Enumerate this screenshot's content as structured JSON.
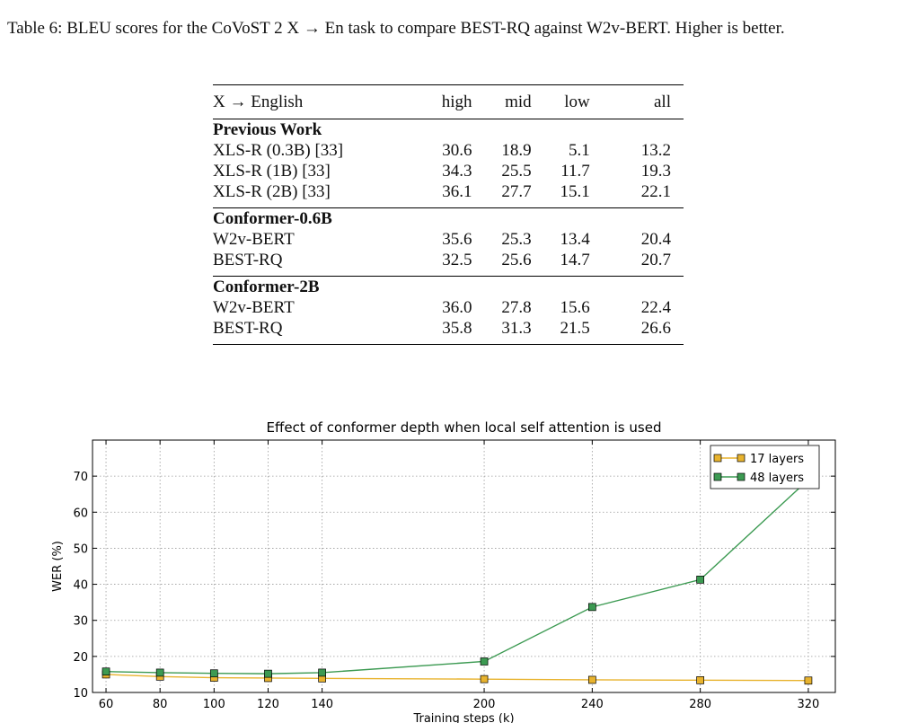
{
  "caption": "Table 6: BLEU scores for the CoVoST 2 X → En task to compare BEST-RQ against W2v-BERT. Higher is better.",
  "table": {
    "headers": [
      "X → English",
      "high",
      "mid",
      "low",
      "all"
    ],
    "groups": [
      {
        "title": "Previous Work",
        "rows": [
          {
            "name": "XLS-R (0.3B) [33]",
            "high": "30.6",
            "mid": "18.9",
            "low": "5.1",
            "all": "13.2"
          },
          {
            "name": "XLS-R (1B) [33]",
            "high": "34.3",
            "mid": "25.5",
            "low": "11.7",
            "all": "19.3"
          },
          {
            "name": "XLS-R (2B) [33]",
            "high": "36.1",
            "mid": "27.7",
            "low": "15.1",
            "all": "22.1"
          }
        ]
      },
      {
        "title": "Conformer-0.6B",
        "rows": [
          {
            "name": "W2v-BERT",
            "high": "35.6",
            "mid": "25.3",
            "low": "13.4",
            "all": "20.4"
          },
          {
            "name": "BEST-RQ",
            "high": "32.5",
            "mid": "25.6",
            "low": "14.7",
            "all": "20.7"
          }
        ]
      },
      {
        "title": "Conformer-2B",
        "rows": [
          {
            "name": "W2v-BERT",
            "high": "36.0",
            "mid": "27.8",
            "low": "15.6",
            "all": "22.4"
          },
          {
            "name": "BEST-RQ",
            "high": "35.8",
            "mid": "31.3",
            "low": "21.5",
            "all": "26.6"
          }
        ]
      }
    ]
  },
  "chart_data": {
    "type": "line",
    "title": "Effect of conformer depth when local self attention is used",
    "xlabel": "Training steps (k)",
    "ylabel": "WER (%)",
    "xlim": [
      55,
      330
    ],
    "ylim": [
      10,
      80
    ],
    "xticks": [
      60,
      80,
      100,
      120,
      140,
      200,
      240,
      280,
      320
    ],
    "yticks": [
      10,
      20,
      30,
      40,
      50,
      60,
      70
    ],
    "grid": true,
    "legend_position": "top-right",
    "x": [
      60,
      80,
      100,
      120,
      140,
      200,
      240,
      280,
      320
    ],
    "series": [
      {
        "name": "17 layers",
        "color": "#e8b32e",
        "values": [
          15.0,
          14.4,
          14.1,
          14.0,
          13.9,
          13.7,
          13.5,
          13.4,
          13.3
        ]
      },
      {
        "name": "48 layers",
        "color": "#3c9a52",
        "values": [
          15.8,
          15.5,
          15.3,
          15.2,
          15.5,
          18.6,
          33.7,
          41.3,
          69.0
        ]
      }
    ]
  }
}
